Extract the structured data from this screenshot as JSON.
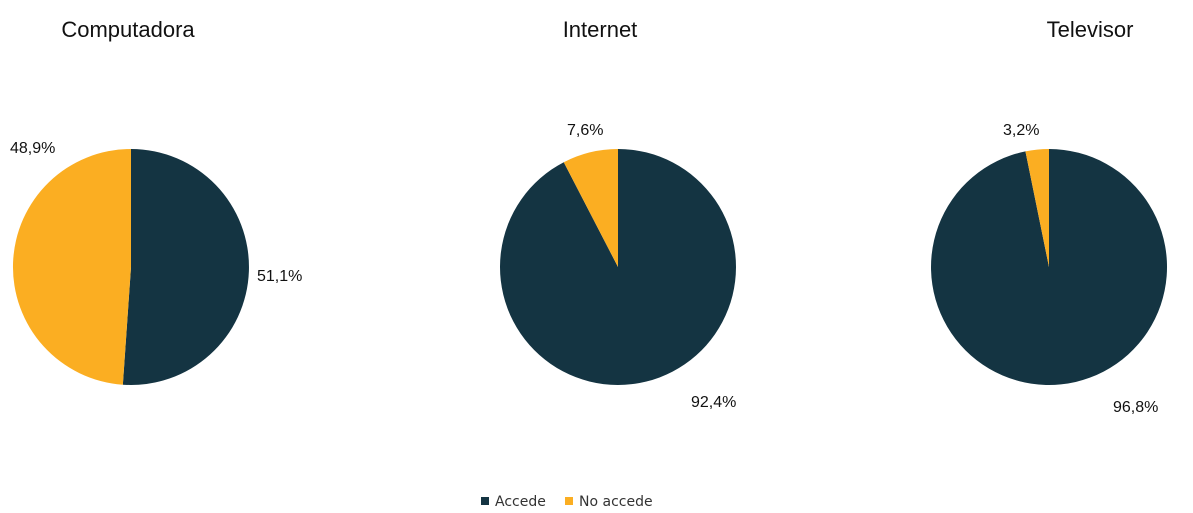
{
  "chart_data": [
    {
      "type": "pie",
      "title": "Computadora",
      "categories": [
        "Accede",
        "No accede"
      ],
      "values": [
        51.1,
        48.9
      ],
      "labels": [
        "51,1%",
        "48,9%"
      ]
    },
    {
      "type": "pie",
      "title": "Internet",
      "categories": [
        "Accede",
        "No accede"
      ],
      "values": [
        92.4,
        7.6
      ],
      "labels": [
        "92,4%",
        "7,6%"
      ]
    },
    {
      "type": "pie",
      "title": "Televisor",
      "categories": [
        "Accede",
        "No accede"
      ],
      "values": [
        96.8,
        3.2
      ],
      "labels": [
        "96,8%",
        "3,2%"
      ]
    }
  ],
  "legend": {
    "placement": "bottom-center",
    "items": [
      {
        "label": "Accede",
        "color": "#143442"
      },
      {
        "label": "No accede",
        "color": "#FBAE22"
      }
    ]
  }
}
